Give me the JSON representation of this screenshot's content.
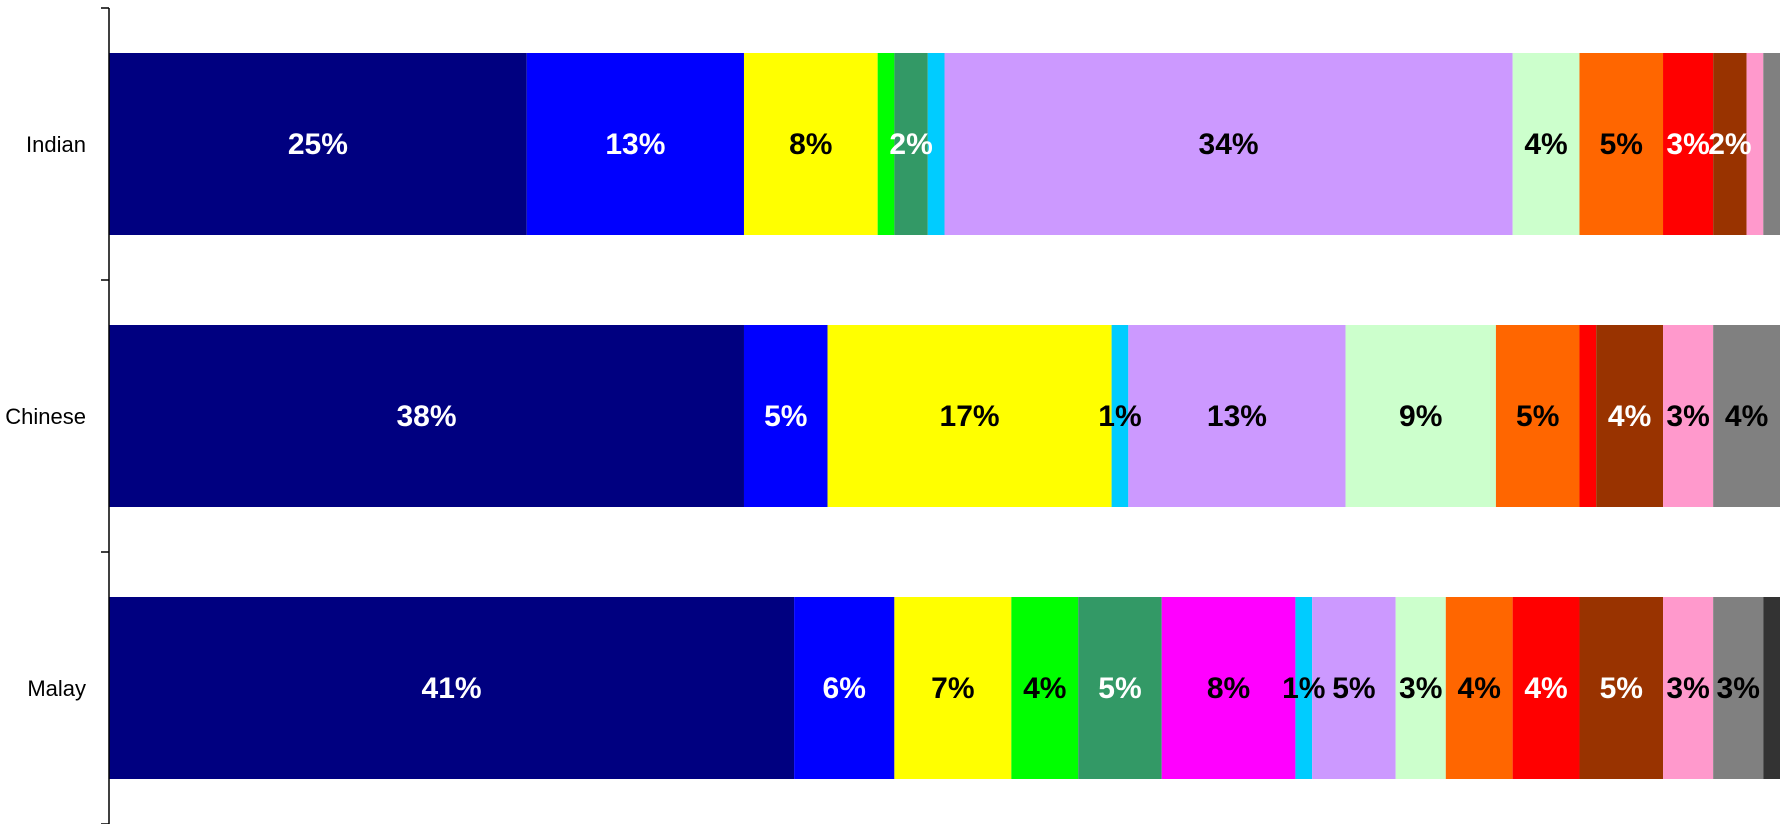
{
  "chart_data": {
    "type": "bar",
    "orientation": "horizontal",
    "stacked": "percent",
    "title": "",
    "xlabel": "",
    "ylabel": "",
    "grid": false,
    "legend": "none",
    "categories": [
      "Indian",
      "Chinese",
      "Malay"
    ],
    "segment_colors": [
      "#000080",
      "#0000FF",
      "#FFFF00",
      "#00FF00",
      "#339966",
      "#FF00FF",
      "#00CCFF",
      "#CC99FF",
      "#CCFFCC",
      "#FF6600",
      "#FF0000",
      "#993300",
      "#FF99CC",
      "#808080",
      "#333333"
    ],
    "rows": [
      {
        "category": "Indian",
        "values": [
          25,
          13,
          8,
          1,
          2,
          0,
          1,
          34,
          4,
          5,
          3,
          2,
          1,
          1,
          0
        ],
        "labels": [
          "25%",
          "13%",
          "8%",
          "",
          "2%",
          "",
          "",
          "34%",
          "4%",
          "5%",
          "3%",
          "2%",
          "",
          "",
          ""
        ],
        "label_colors": [
          "#FFFFFF",
          "#FFFFFF",
          "#000000",
          "#000000",
          "#FFFFFF",
          "#000000",
          "#000000",
          "#000000",
          "#000000",
          "#000000",
          "#FFFFFF",
          "#FFFFFF",
          "#000000",
          "#000000",
          "#000000"
        ]
      },
      {
        "category": "Chinese",
        "values": [
          38,
          5,
          17,
          0,
          0,
          0,
          1,
          13,
          9,
          5,
          1,
          4,
          3,
          4,
          0
        ],
        "labels": [
          "38%",
          "5%",
          "17%",
          "",
          "",
          "",
          "1%",
          "13%",
          "9%",
          "5%",
          "",
          "4%",
          "3%",
          "4%",
          ""
        ],
        "label_colors": [
          "#FFFFFF",
          "#FFFFFF",
          "#000000",
          "#000000",
          "#000000",
          "#000000",
          "#000000",
          "#000000",
          "#000000",
          "#000000",
          "#FFFFFF",
          "#FFFFFF",
          "#000000",
          "#000000",
          "#000000"
        ]
      },
      {
        "category": "Malay",
        "values": [
          41,
          6,
          7,
          4,
          5,
          8,
          1,
          5,
          3,
          4,
          4,
          5,
          3,
          3,
          1
        ],
        "labels": [
          "41%",
          "6%",
          "7%",
          "4%",
          "5%",
          "8%",
          "1%",
          "5%",
          "3%",
          "4%",
          "4%",
          "5%",
          "3%",
          "3%",
          ""
        ],
        "label_colors": [
          "#FFFFFF",
          "#FFFFFF",
          "#000000",
          "#000000",
          "#FFFFFF",
          "#000000",
          "#000000",
          "#000000",
          "#000000",
          "#000000",
          "#FFFFFF",
          "#FFFFFF",
          "#000000",
          "#000000",
          "#000000"
        ]
      }
    ]
  }
}
